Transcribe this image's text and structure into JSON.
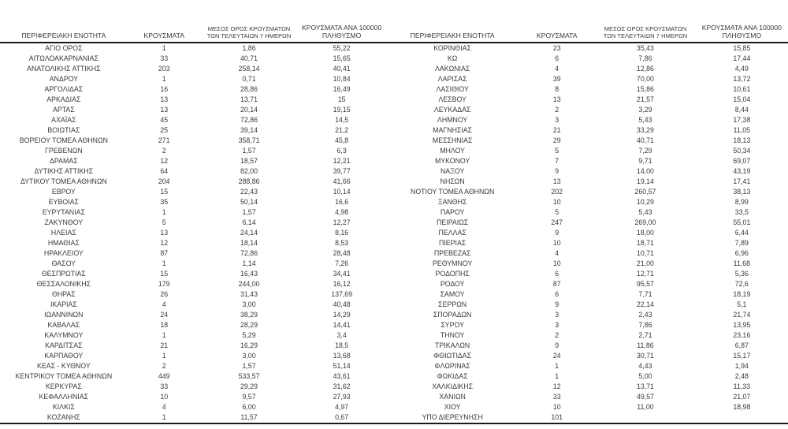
{
  "document": {
    "title": "Cases by regional unit table",
    "colors": {
      "background": "#ffffff",
      "text": "#3a3a3a",
      "rule": "#1a1a1a"
    },
    "headers": {
      "region": "ΠΕΡΙΦΕΡΕΙΑΚΗ ΕΝΟΤΗΤΑ",
      "cases": "ΚΡΟΥΣΜΑΤΑ",
      "avg7_line1": "ΜΕΣΟΣ ΟΡΟΣ ΚΡΟΥΣΜΑΤΩΝ",
      "avg7_line2": "ΤΩΝ ΤΕΛΕΥΤΑΙΩΝ 7 ΗΜΕΡΩΝ",
      "per100k_line1": "ΚΡΟΥΣΜΑΤΑ ΑΝΑ 100000",
      "per100k_line2": "ΠΛΗΘΥΣΜΟ"
    },
    "left_rows": [
      [
        "ΑΓΙΟ ΟΡΟΣ",
        "1",
        "1,86",
        "55,22"
      ],
      [
        "ΑΙΤΩΛΟΑΚΑΡΝΑΝΙΑΣ",
        "33",
        "40,71",
        "15,65"
      ],
      [
        "ΑΝΑΤΟΛΙΚΗΣ ΑΤΤΙΚΗΣ",
        "203",
        "258,14",
        "40,41"
      ],
      [
        "ΑΝΔΡΟΥ",
        "1",
        "0,71",
        "10,84"
      ],
      [
        "ΑΡΓΟΛΙΔΑΣ",
        "16",
        "28,86",
        "16,49"
      ],
      [
        "ΑΡΚΑΔΙΑΣ",
        "13",
        "13,71",
        "15"
      ],
      [
        "ΑΡΤΑΣ",
        "13",
        "20,14",
        "19,15"
      ],
      [
        "ΑΧΑΪΑΣ",
        "45",
        "72,86",
        "14,5"
      ],
      [
        "ΒΟΙΩΤΙΑΣ",
        "25",
        "39,14",
        "21,2"
      ],
      [
        "ΒΟΡΕΙΟΥ ΤΟΜΕΑ ΑΘΗΝΩΝ",
        "271",
        "358,71",
        "45,8"
      ],
      [
        "ΓΡΕΒΕΝΩΝ",
        "2",
        "1,57",
        "6,3"
      ],
      [
        "ΔΡΑΜΑΣ",
        "12",
        "18,57",
        "12,21"
      ],
      [
        "ΔΥΤΙΚΗΣ ΑΤΤΙΚΗΣ",
        "64",
        "82,00",
        "39,77"
      ],
      [
        "ΔΥΤΙΚΟΥ ΤΟΜΕΑ ΑΘΗΝΩΝ",
        "204",
        "288,86",
        "41,66"
      ],
      [
        "ΕΒΡΟΥ",
        "15",
        "22,43",
        "10,14"
      ],
      [
        "ΕΥΒΟΙΑΣ",
        "35",
        "50,14",
        "16,6"
      ],
      [
        "ΕΥΡΥΤΑΝΙΑΣ",
        "1",
        "1,57",
        "4,98"
      ],
      [
        "ΖΑΚΥΝΘΟΥ",
        "5",
        "6,14",
        "12,27"
      ],
      [
        "ΗΛΕΙΑΣ",
        "13",
        "24,14",
        "8,16"
      ],
      [
        "ΗΜΑΘΙΑΣ",
        "12",
        "18,14",
        "8,53"
      ],
      [
        "ΗΡΑΚΛΕΙΟΥ",
        "87",
        "72,86",
        "28,48"
      ],
      [
        "ΘΑΣΟΥ",
        "1",
        "1,14",
        "7,26"
      ],
      [
        "ΘΕΣΠΡΩΤΙΑΣ",
        "15",
        "16,43",
        "34,41"
      ],
      [
        "ΘΕΣΣΑΛΟΝΙΚΗΣ",
        "179",
        "244,00",
        "16,12"
      ],
      [
        "ΘΗΡΑΣ",
        "26",
        "31,43",
        "137,69"
      ],
      [
        "ΙΚΑΡΙΑΣ",
        "4",
        "3,00",
        "40,48"
      ],
      [
        "ΙΩΑΝΝΙΝΩΝ",
        "24",
        "38,29",
        "14,29"
      ],
      [
        "ΚΑΒΑΛΑΣ",
        "18",
        "28,29",
        "14,41"
      ],
      [
        "ΚΑΛΥΜΝΟΥ",
        "1",
        "5,29",
        "3,4"
      ],
      [
        "ΚΑΡΔΙΤΣΑΣ",
        "21",
        "16,29",
        "18,5"
      ],
      [
        "ΚΑΡΠΑΘΟΥ",
        "1",
        "3,00",
        "13,68"
      ],
      [
        "ΚΕΑΣ - ΚΥΘΝΟΥ",
        "2",
        "1,57",
        "51,14"
      ],
      [
        "ΚΕΝΤΡΙΚΟΥ ΤΟΜΕΑ ΑΘΗΝΩΝ",
        "449",
        "533,57",
        "43,61"
      ],
      [
        "ΚΕΡΚΥΡΑΣ",
        "33",
        "29,29",
        "31,62"
      ],
      [
        "ΚΕΦΑΛΛΗΝΙΑΣ",
        "10",
        "9,57",
        "27,93"
      ],
      [
        "ΚΙΛΚΙΣ",
        "4",
        "6,00",
        "4,97"
      ],
      [
        "ΚΟΖΑΝΗΣ",
        "1",
        "11,57",
        "0,67"
      ]
    ],
    "right_rows": [
      [
        "ΚΟΡΙΝΘΙΑΣ",
        "23",
        "35,43",
        "15,85"
      ],
      [
        "ΚΩ",
        "6",
        "7,86",
        "17,44"
      ],
      [
        "ΛΑΚΩΝΙΑΣ",
        "4",
        "12,86",
        "4,49"
      ],
      [
        "ΛΑΡΙΣΑΣ",
        "39",
        "70,00",
        "13,72"
      ],
      [
        "ΛΑΣΙΘΙΟΥ",
        "8",
        "15,86",
        "10,61"
      ],
      [
        "ΛΕΣΒΟΥ",
        "13",
        "21,57",
        "15,04"
      ],
      [
        "ΛΕΥΚΑΔΑΣ",
        "2",
        "3,29",
        "8,44"
      ],
      [
        "ΛΗΜΝΟΥ",
        "3",
        "5,43",
        "17,38"
      ],
      [
        "ΜΑΓΝΗΣΙΑΣ",
        "21",
        "33,29",
        "11,05"
      ],
      [
        "ΜΕΣΣΗΝΙΑΣ",
        "29",
        "40,71",
        "18,13"
      ],
      [
        "ΜΗΛΟΥ",
        "5",
        "7,29",
        "50,34"
      ],
      [
        "ΜΥΚΟΝΟΥ",
        "7",
        "9,71",
        "69,07"
      ],
      [
        "ΝΑΞΟΥ",
        "9",
        "14,00",
        "43,19"
      ],
      [
        "ΝΗΣΩΝ",
        "13",
        "19,14",
        "17,41"
      ],
      [
        "ΝΟΤΙΟΥ ΤΟΜΕΑ ΑΘΗΝΩΝ",
        "202",
        "260,57",
        "38,13"
      ],
      [
        "ΞΑΝΘΗΣ",
        "10",
        "10,29",
        "8,99"
      ],
      [
        "ΠΑΡΟΥ",
        "5",
        "5,43",
        "33,5"
      ],
      [
        "ΠΕΙΡΑΙΩΣ",
        "247",
        "269,00",
        "55,01"
      ],
      [
        "ΠΕΛΛΑΣ",
        "9",
        "18,00",
        "6,44"
      ],
      [
        "ΠΙΕΡΙΑΣ",
        "10",
        "18,71",
        "7,89"
      ],
      [
        "ΠΡΕΒΕΖΑΣ",
        "4",
        "10,71",
        "6,96"
      ],
      [
        "ΡΕΘΥΜΝΟΥ",
        "10",
        "21,00",
        "11,68"
      ],
      [
        "ΡΟΔΟΠΗΣ",
        "6",
        "12,71",
        "5,36"
      ],
      [
        "ΡΟΔΟΥ",
        "87",
        "95,57",
        "72,6"
      ],
      [
        "ΣΑΜΟΥ",
        "6",
        "7,71",
        "18,19"
      ],
      [
        "ΣΕΡΡΩΝ",
        "9",
        "22,14",
        "5,1"
      ],
      [
        "ΣΠΟΡΑΔΩΝ",
        "3",
        "2,43",
        "21,74"
      ],
      [
        "ΣΥΡΟΥ",
        "3",
        "7,86",
        "13,95"
      ],
      [
        "ΤΗΝΟΥ",
        "2",
        "2,71",
        "23,16"
      ],
      [
        "ΤΡΙΚΑΛΩΝ",
        "9",
        "11,86",
        "6,87"
      ],
      [
        "ΦΘΙΩΤΙΔΑΣ",
        "24",
        "30,71",
        "15,17"
      ],
      [
        "ΦΛΩΡΙΝΑΣ",
        "1",
        "4,43",
        "1,94"
      ],
      [
        "ΦΩΚΙΔΑΣ",
        "1",
        "5,00",
        "2,48"
      ],
      [
        "ΧΑΛΚΙΔΙΚΗΣ",
        "12",
        "13,71",
        "11,33"
      ],
      [
        "ΧΑΝΙΩΝ",
        "33",
        "49,57",
        "21,07"
      ],
      [
        "ΧΙΟΥ",
        "10",
        "11,00",
        "18,98"
      ],
      [
        "ΥΠΟ ΔΙΕΡΕΥΝΗΣΗ",
        "101",
        "",
        ""
      ]
    ]
  }
}
